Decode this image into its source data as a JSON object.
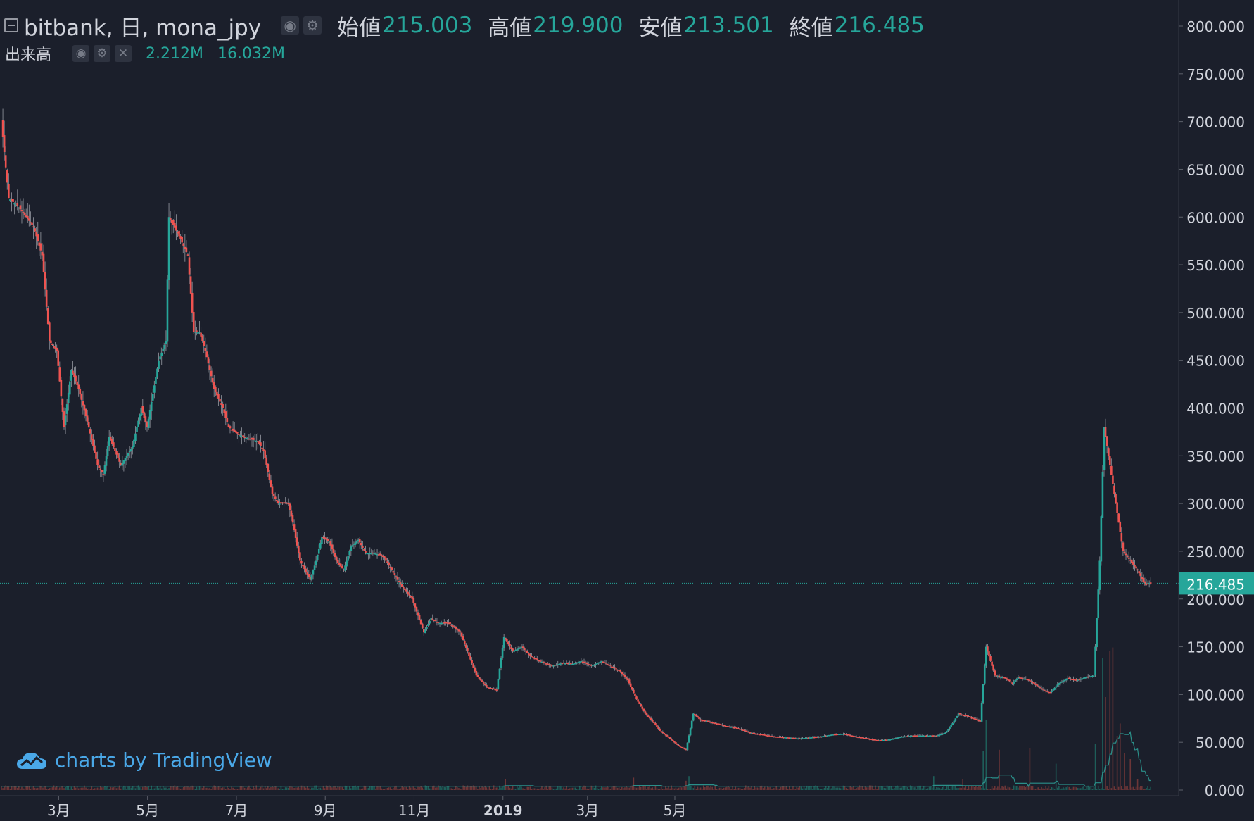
{
  "legend": {
    "symbol": "bitbank, 日, mona_jpy",
    "open_label": "始値",
    "open": "215.003",
    "high_label": "高値",
    "high": "219.900",
    "low_label": "安値",
    "low": "213.501",
    "close_label": "終値",
    "close": "216.485"
  },
  "volume_legend": {
    "title": "出来高",
    "value": "2.212M",
    "ma_value": "16.032M"
  },
  "watermark": "charts by TradingView",
  "colors": {
    "background": "#1b1f2b",
    "up": "#26a69a",
    "down": "#ef5350",
    "axis_text": "#d1d4dc",
    "price_line": "#26a69a"
  },
  "chart_data": {
    "type": "candlestick",
    "title": "bitbank, 日, mona_jpy",
    "ylim": [
      0,
      800
    ],
    "yticks": [
      "0.000",
      "50.000",
      "100.000",
      "150.000",
      "200.000",
      "250.000",
      "300.000",
      "350.000",
      "400.000",
      "450.000",
      "500.000",
      "550.000",
      "600.000",
      "650.000",
      "700.000",
      "750.000",
      "800.000"
    ],
    "xticks": [
      "3月",
      "5月",
      "7月",
      "9月",
      "11月",
      "2019",
      "3月",
      "5月"
    ],
    "last_price": "216.485",
    "price_anchors": [
      [
        0,
        700
      ],
      [
        5,
        620
      ],
      [
        12,
        610
      ],
      [
        22,
        590
      ],
      [
        28,
        560
      ],
      [
        33,
        470
      ],
      [
        38,
        460
      ],
      [
        43,
        380
      ],
      [
        48,
        440
      ],
      [
        53,
        420
      ],
      [
        60,
        380
      ],
      [
        66,
        340
      ],
      [
        70,
        330
      ],
      [
        74,
        370
      ],
      [
        82,
        340
      ],
      [
        90,
        360
      ],
      [
        96,
        400
      ],
      [
        100,
        380
      ],
      [
        108,
        450
      ],
      [
        113,
        470
      ],
      [
        115,
        600
      ],
      [
        122,
        580
      ],
      [
        128,
        560
      ],
      [
        132,
        480
      ],
      [
        136,
        480
      ],
      [
        140,
        460
      ],
      [
        146,
        420
      ],
      [
        152,
        400
      ],
      [
        156,
        380
      ],
      [
        160,
        375
      ],
      [
        166,
        370
      ],
      [
        176,
        365
      ],
      [
        180,
        355
      ],
      [
        186,
        310
      ],
      [
        190,
        300
      ],
      [
        197,
        300
      ],
      [
        200,
        280
      ],
      [
        205,
        240
      ],
      [
        212,
        220
      ],
      [
        216,
        240
      ],
      [
        220,
        265
      ],
      [
        225,
        260
      ],
      [
        230,
        240
      ],
      [
        235,
        230
      ],
      [
        240,
        255
      ],
      [
        245,
        262
      ],
      [
        250,
        248
      ],
      [
        256,
        248
      ],
      [
        262,
        245
      ],
      [
        268,
        230
      ],
      [
        274,
        215
      ],
      [
        282,
        200
      ],
      [
        290,
        165
      ],
      [
        295,
        180
      ],
      [
        300,
        175
      ],
      [
        307,
        175
      ],
      [
        315,
        165
      ],
      [
        320,
        145
      ],
      [
        326,
        120
      ],
      [
        333,
        108
      ],
      [
        340,
        105
      ],
      [
        345,
        160
      ],
      [
        351,
        145
      ],
      [
        357,
        150
      ],
      [
        363,
        140
      ],
      [
        370,
        135
      ],
      [
        378,
        130
      ],
      [
        385,
        133
      ],
      [
        392,
        132
      ],
      [
        398,
        135
      ],
      [
        405,
        130
      ],
      [
        412,
        135
      ],
      [
        418,
        130
      ],
      [
        424,
        125
      ],
      [
        430,
        115
      ],
      [
        436,
        95
      ],
      [
        442,
        80
      ],
      [
        448,
        70
      ],
      [
        452,
        62
      ],
      [
        458,
        55
      ],
      [
        465,
        46
      ],
      [
        470,
        42
      ],
      [
        475,
        80
      ],
      [
        480,
        73
      ],
      [
        485,
        72
      ],
      [
        495,
        68
      ],
      [
        505,
        65
      ],
      [
        514,
        60
      ],
      [
        522,
        58
      ],
      [
        530,
        56
      ],
      [
        540,
        55
      ],
      [
        548,
        54
      ],
      [
        555,
        55
      ],
      [
        562,
        56
      ],
      [
        570,
        58
      ],
      [
        578,
        59
      ],
      [
        586,
        56
      ],
      [
        594,
        54
      ],
      [
        602,
        52
      ],
      [
        610,
        53
      ],
      [
        618,
        56
      ],
      [
        626,
        57
      ],
      [
        634,
        57
      ],
      [
        642,
        57
      ],
      [
        648,
        60
      ],
      [
        653,
        70
      ],
      [
        657,
        80
      ],
      [
        662,
        78
      ],
      [
        667,
        75
      ],
      [
        672,
        72
      ],
      [
        676,
        150
      ],
      [
        682,
        120
      ],
      [
        688,
        118
      ],
      [
        694,
        112
      ],
      [
        698,
        118
      ],
      [
        704,
        116
      ],
      [
        710,
        110
      ],
      [
        716,
        104
      ],
      [
        720,
        102
      ],
      [
        726,
        112
      ],
      [
        732,
        117
      ],
      [
        738,
        115
      ],
      [
        744,
        118
      ],
      [
        750,
        120
      ],
      [
        754,
        240
      ],
      [
        757,
        380
      ],
      [
        762,
        330
      ],
      [
        766,
        290
      ],
      [
        770,
        250
      ],
      [
        775,
        240
      ],
      [
        780,
        230
      ],
      [
        785,
        215
      ],
      [
        788,
        216.5
      ]
    ],
    "volume_scale_max": "16.032M",
    "volume_spikes": [
      [
        346,
        0.7
      ],
      [
        434,
        0.8
      ],
      [
        470,
        0.6
      ],
      [
        472,
        0.9
      ],
      [
        640,
        0.9
      ],
      [
        660,
        0.7
      ],
      [
        674,
        2.5
      ],
      [
        676,
        4.5
      ],
      [
        685,
        2.6
      ],
      [
        706,
        2.7
      ],
      [
        724,
        1.7
      ],
      [
        751,
        3.0
      ],
      [
        756,
        8.5
      ],
      [
        758,
        6.0
      ],
      [
        761,
        9.0
      ],
      [
        763,
        9.2
      ],
      [
        766,
        3.5
      ],
      [
        768,
        4.3
      ],
      [
        771,
        2.4
      ],
      [
        775,
        2.0
      ],
      [
        780,
        0.7
      ]
    ]
  }
}
